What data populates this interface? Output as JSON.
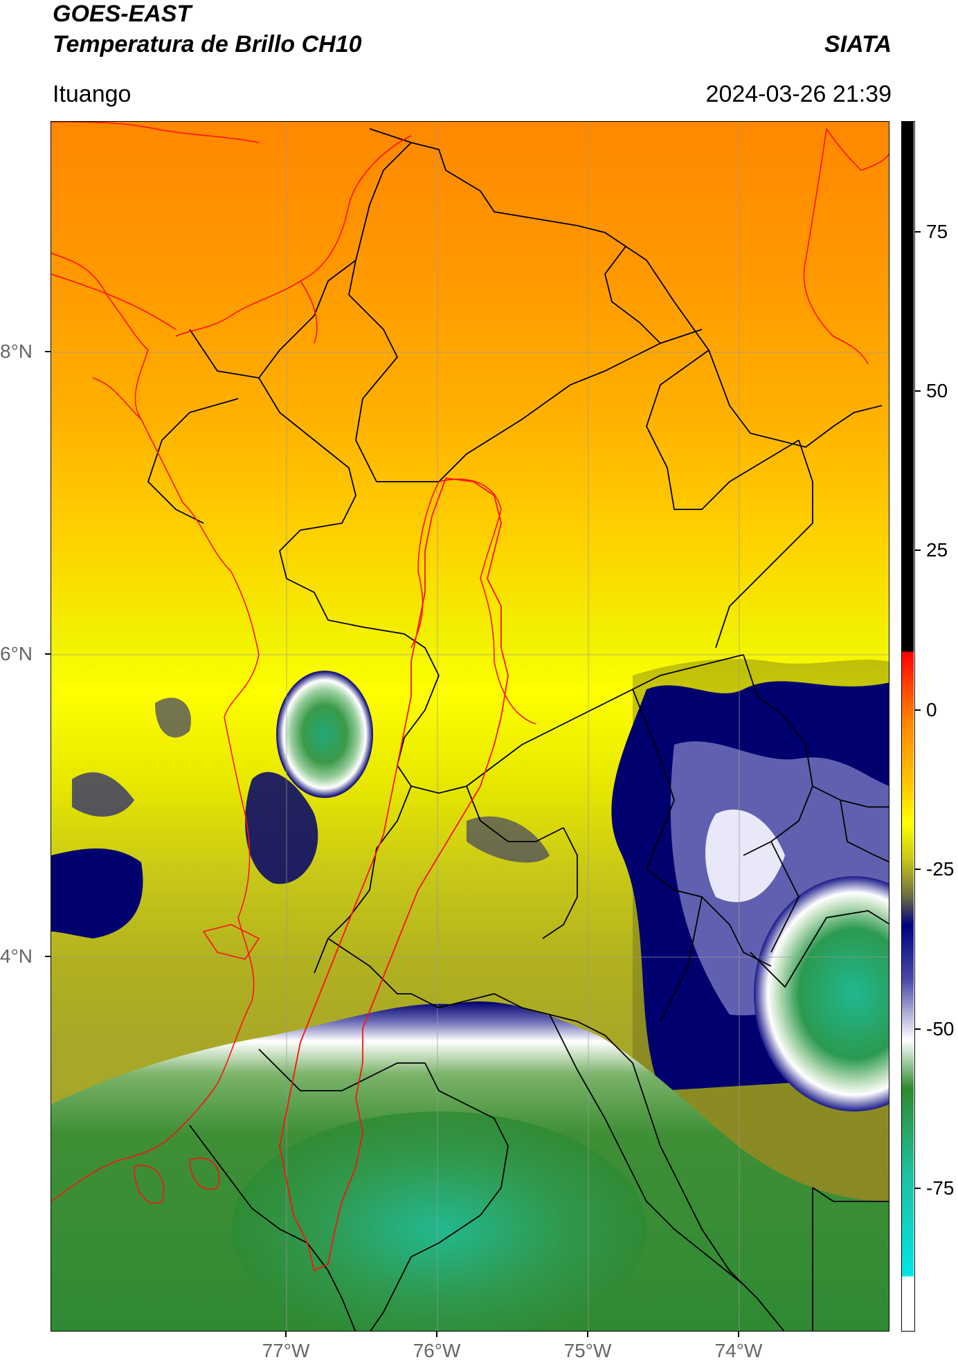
{
  "header": {
    "satellite": "GOES-EAST",
    "product": "Temperatura de Brillo CH10",
    "organization": "SIATA",
    "region": "Ituango",
    "timestamp": "2024-03-26 21:39"
  },
  "map": {
    "lat_labels": [
      "8°N",
      "6°N",
      "4°N"
    ],
    "lon_labels": [
      "77°W",
      "76°W",
      "75°W",
      "74°W"
    ],
    "grid": true,
    "basin_outline_color": "#ff0000",
    "coastline_color": "#ff0000",
    "admin_border_color": "#000000"
  },
  "colorbar": {
    "ticks": [
      "75",
      "50",
      "25",
      "0",
      "-25",
      "-50",
      "-75"
    ],
    "range": [
      -100,
      90
    ],
    "colors": {
      "black": "#000000",
      "red": "#ff0000",
      "orange": "#ff8c00",
      "yellow": "#ffff00",
      "olive": "#a0a000",
      "navy": "#000080",
      "white": "#ffffff",
      "green": "#2e8b2e",
      "teal": "#20c0a0",
      "cyan": "#00e5e5"
    }
  }
}
